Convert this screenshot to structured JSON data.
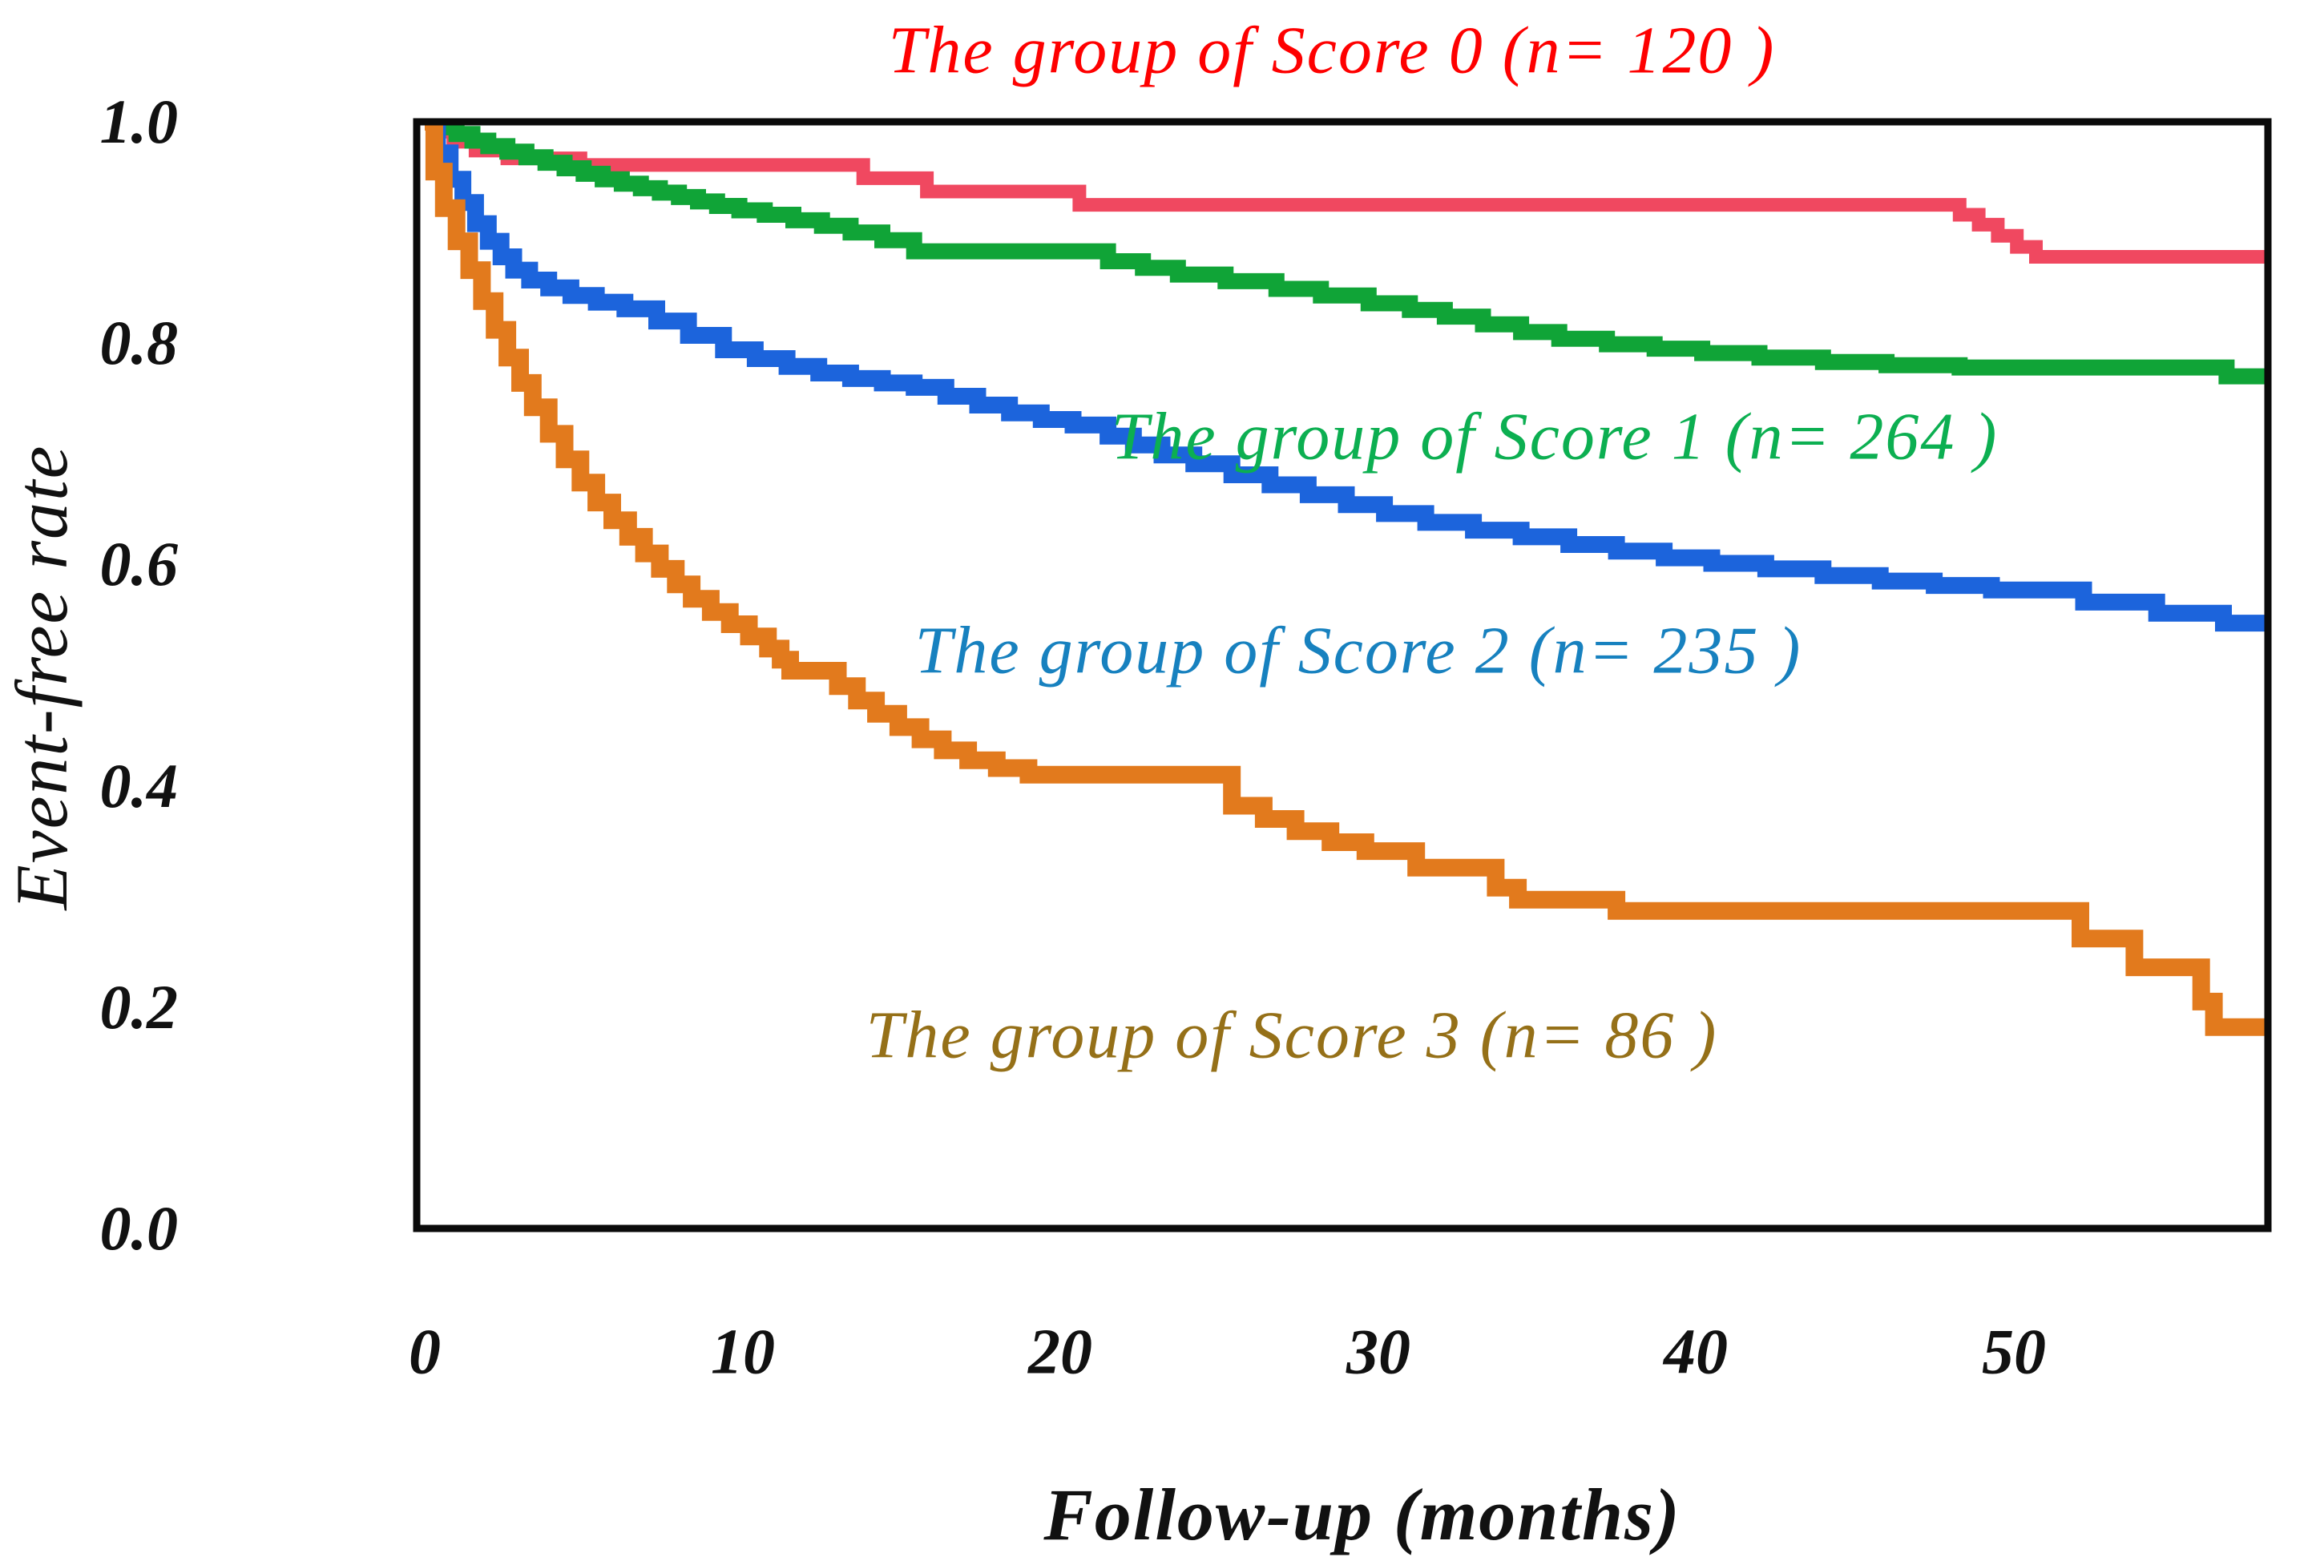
{
  "figure": {
    "y_axis_title": "Event-free rate",
    "x_axis_title": "Follow-up (months)"
  },
  "chart_data": {
    "type": "line",
    "subtype": "kaplan-meier-step",
    "title": "",
    "xlabel": "Follow-up (months)",
    "ylabel": "Event-free rate",
    "xlim": [
      0,
      58
    ],
    "ylim": [
      0.0,
      1.0
    ],
    "x_ticks": [
      0,
      10,
      20,
      30,
      40,
      50
    ],
    "y_ticks": [
      1.0,
      0.8,
      0.6,
      0.4,
      0.2,
      0.0
    ],
    "grid": false,
    "legend_position": "annotations-inside-plot",
    "axis_color": "#0a0a0a",
    "series": [
      {
        "name": "The group of Score 0 (n= 120 )",
        "n": 120,
        "color": "#F04860",
        "label_color": "#FE0000",
        "points": [
          [
            0,
            1.0
          ],
          [
            0.4,
            0.991
          ],
          [
            0.9,
            0.982
          ],
          [
            1.6,
            0.974
          ],
          [
            2.6,
            0.967
          ],
          [
            4.9,
            0.961
          ],
          [
            13.8,
            0.949
          ],
          [
            15.8,
            0.937
          ],
          [
            20.6,
            0.925
          ],
          [
            48.3,
            0.916
          ],
          [
            48.9,
            0.907
          ],
          [
            49.5,
            0.897
          ],
          [
            50.1,
            0.887
          ],
          [
            50.7,
            0.878
          ],
          [
            58,
            0.878
          ]
        ]
      },
      {
        "name": "The group of Score 1 (n= 264 )",
        "n": 264,
        "color": "#10A437",
        "label_color": "#0CAF51",
        "points": [
          [
            0,
            1.0
          ],
          [
            0.5,
            0.995
          ],
          [
            1,
            0.989
          ],
          [
            1.5,
            0.983
          ],
          [
            2,
            0.978
          ],
          [
            2.6,
            0.973
          ],
          [
            3.2,
            0.968
          ],
          [
            3.8,
            0.963
          ],
          [
            4.4,
            0.958
          ],
          [
            5,
            0.953
          ],
          [
            5.6,
            0.948
          ],
          [
            6.2,
            0.944
          ],
          [
            6.8,
            0.94
          ],
          [
            7.4,
            0.936
          ],
          [
            8,
            0.932
          ],
          [
            8.6,
            0.928
          ],
          [
            9.2,
            0.924
          ],
          [
            9.9,
            0.92
          ],
          [
            10.7,
            0.916
          ],
          [
            11.6,
            0.911
          ],
          [
            12.5,
            0.906
          ],
          [
            13.4,
            0.9
          ],
          [
            14.4,
            0.893
          ],
          [
            15.4,
            0.883
          ],
          [
            21.5,
            0.874
          ],
          [
            22.6,
            0.868
          ],
          [
            23.7,
            0.862
          ],
          [
            25.2,
            0.856
          ],
          [
            26.8,
            0.849
          ],
          [
            28.2,
            0.843
          ],
          [
            29.7,
            0.836
          ],
          [
            31,
            0.83
          ],
          [
            32.1,
            0.824
          ],
          [
            33.3,
            0.817
          ],
          [
            34.5,
            0.81
          ],
          [
            35.7,
            0.804
          ],
          [
            37.2,
            0.799
          ],
          [
            38.7,
            0.795
          ],
          [
            40.2,
            0.791
          ],
          [
            42,
            0.787
          ],
          [
            44,
            0.783
          ],
          [
            46,
            0.78
          ],
          [
            48.3,
            0.778
          ],
          [
            56.7,
            0.77
          ],
          [
            58,
            0.77
          ]
        ]
      },
      {
        "name": "The group of Score 2 (n= 235 )",
        "n": 235,
        "color": "#1C64DC",
        "label_color": "#1781BF",
        "points": [
          [
            0,
            1.0
          ],
          [
            0.4,
            0.972
          ],
          [
            0.8,
            0.948
          ],
          [
            1.2,
            0.927
          ],
          [
            1.6,
            0.908
          ],
          [
            2,
            0.892
          ],
          [
            2.4,
            0.878
          ],
          [
            2.8,
            0.866
          ],
          [
            3.3,
            0.857
          ],
          [
            3.9,
            0.85
          ],
          [
            4.6,
            0.843
          ],
          [
            5.4,
            0.837
          ],
          [
            6.3,
            0.831
          ],
          [
            7.3,
            0.82
          ],
          [
            8.3,
            0.807
          ],
          [
            9.4,
            0.794
          ],
          [
            10.4,
            0.786
          ],
          [
            11.4,
            0.779
          ],
          [
            12.4,
            0.773
          ],
          [
            13.4,
            0.768
          ],
          [
            14.4,
            0.764
          ],
          [
            15.4,
            0.76
          ],
          [
            16.4,
            0.752
          ],
          [
            17.4,
            0.744
          ],
          [
            18.4,
            0.737
          ],
          [
            19.4,
            0.731
          ],
          [
            20.4,
            0.726
          ],
          [
            21.5,
            0.716
          ],
          [
            22.3,
            0.708
          ],
          [
            23.2,
            0.699
          ],
          [
            24.2,
            0.691
          ],
          [
            25.4,
            0.681
          ],
          [
            26.6,
            0.672
          ],
          [
            27.8,
            0.663
          ],
          [
            29,
            0.654
          ],
          [
            30.2,
            0.646
          ],
          [
            31.5,
            0.638
          ],
          [
            33,
            0.631
          ],
          [
            34.5,
            0.625
          ],
          [
            36,
            0.618
          ],
          [
            37.5,
            0.612
          ],
          [
            39,
            0.606
          ],
          [
            40.5,
            0.601
          ],
          [
            42.2,
            0.596
          ],
          [
            44,
            0.59
          ],
          [
            45.8,
            0.585
          ],
          [
            47.5,
            0.581
          ],
          [
            49.3,
            0.577
          ],
          [
            52.2,
            0.566
          ],
          [
            54.5,
            0.556
          ],
          [
            56.6,
            0.547
          ],
          [
            58,
            0.547
          ]
        ]
      },
      {
        "name": "The group of Score 3 (n= 86 )",
        "n": 86,
        "color": "#E27A1D",
        "label_color": "#957018",
        "points": [
          [
            0,
            1.0
          ],
          [
            0.3,
            0.955
          ],
          [
            0.6,
            0.922
          ],
          [
            1,
            0.892
          ],
          [
            1.4,
            0.866
          ],
          [
            1.8,
            0.838
          ],
          [
            2.2,
            0.812
          ],
          [
            2.6,
            0.787
          ],
          [
            3,
            0.764
          ],
          [
            3.4,
            0.742
          ],
          [
            3.9,
            0.718
          ],
          [
            4.4,
            0.695
          ],
          [
            4.9,
            0.674
          ],
          [
            5.4,
            0.656
          ],
          [
            5.9,
            0.64
          ],
          [
            6.4,
            0.625
          ],
          [
            6.9,
            0.61
          ],
          [
            7.4,
            0.596
          ],
          [
            7.9,
            0.582
          ],
          [
            8.4,
            0.569
          ],
          [
            9,
            0.557
          ],
          [
            9.6,
            0.546
          ],
          [
            10.2,
            0.535
          ],
          [
            10.8,
            0.524
          ],
          [
            11.2,
            0.514
          ],
          [
            11.5,
            0.504
          ],
          [
            13,
            0.49
          ],
          [
            13.6,
            0.477
          ],
          [
            14.2,
            0.465
          ],
          [
            14.9,
            0.453
          ],
          [
            15.6,
            0.442
          ],
          [
            16.3,
            0.432
          ],
          [
            17.1,
            0.423
          ],
          [
            18,
            0.416
          ],
          [
            19,
            0.41
          ],
          [
            25.4,
            0.382
          ],
          [
            26.4,
            0.37
          ],
          [
            27.4,
            0.359
          ],
          [
            28.5,
            0.349
          ],
          [
            29.6,
            0.341
          ],
          [
            31.2,
            0.326
          ],
          [
            33.7,
            0.308
          ],
          [
            34.4,
            0.297
          ],
          [
            37.5,
            0.287
          ],
          [
            52.1,
            0.262
          ],
          [
            53.8,
            0.236
          ],
          [
            55.9,
            0.205
          ],
          [
            56.3,
            0.182
          ],
          [
            58,
            0.182
          ]
        ]
      }
    ]
  }
}
